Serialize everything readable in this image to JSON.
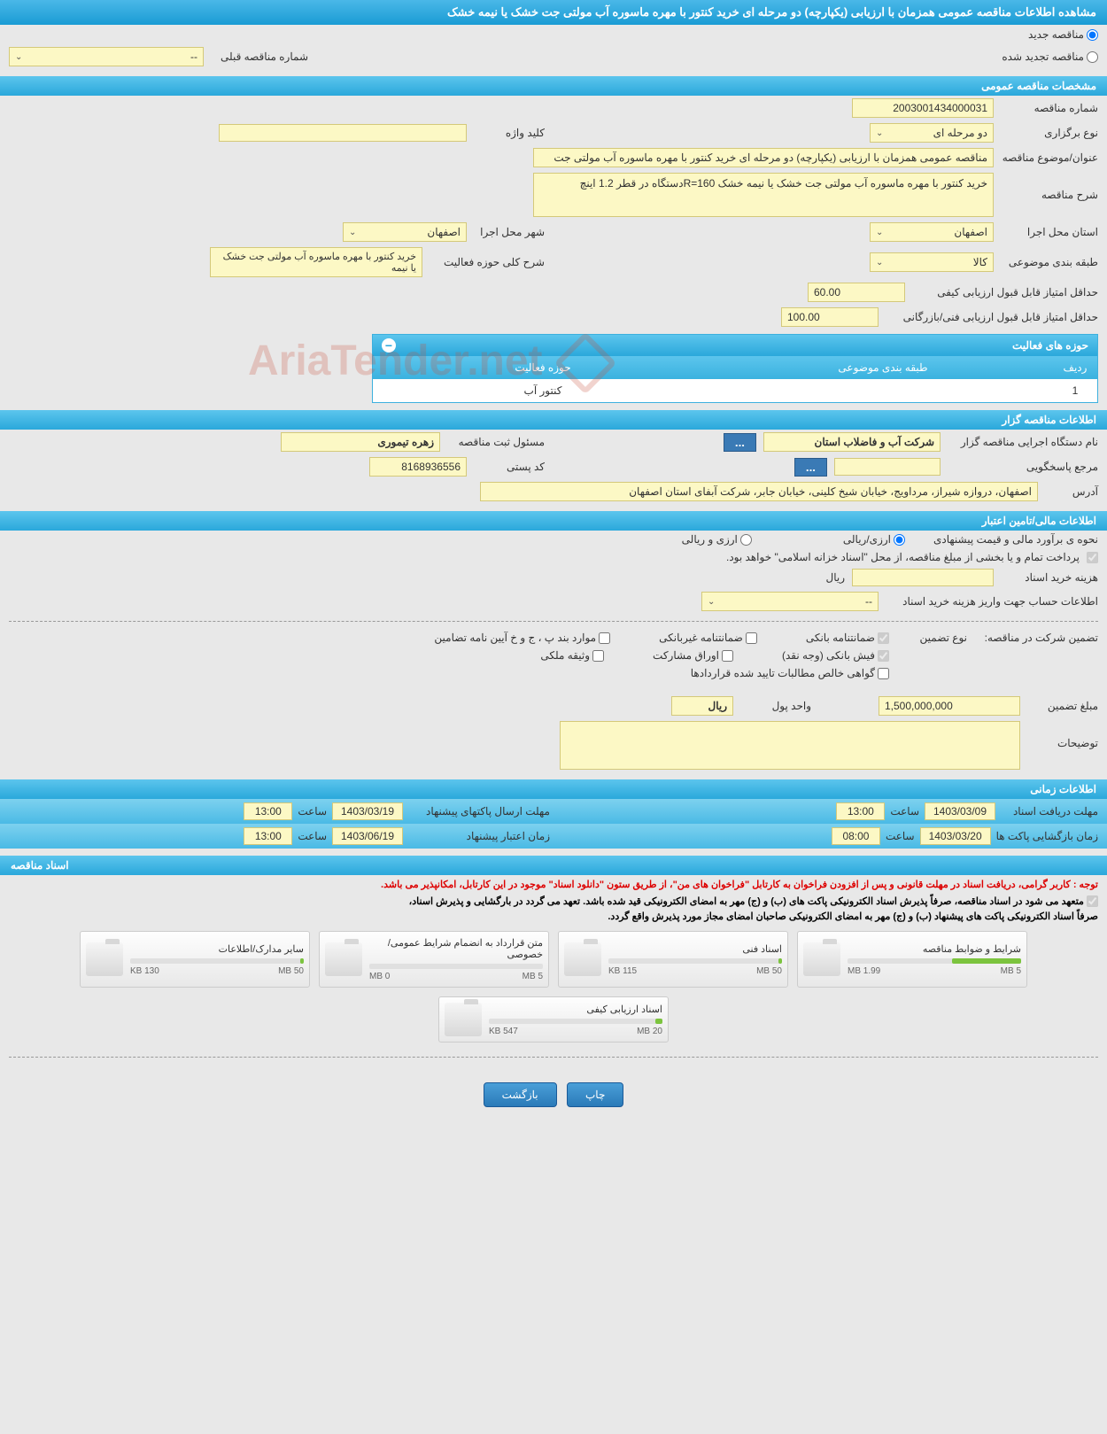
{
  "page_title": "مشاهده اطلاعات مناقصه عمومی همزمان با ارزیابی (یکپارچه) دو مرحله ای خرید کنتور با مهره ماسوره آب مولتی جت خشک یا نیمه خشک",
  "tender_status": {
    "new_label": "مناقصه جدید",
    "renewed_label": "مناقصه تجدید شده",
    "prev_number_label": "شماره مناقصه قبلی",
    "prev_number_value": "--"
  },
  "sections": {
    "general": "مشخصات مناقصه عمومی",
    "organizer": "اطلاعات مناقصه گزار",
    "financial": "اطلاعات مالی/تامین اعتبار",
    "timing": "اطلاعات زمانی",
    "documents": "اسناد مناقصه"
  },
  "general": {
    "tender_number_label": "شماره مناقصه",
    "tender_number": "2003001434000031",
    "keyword_label": "کلید واژه",
    "keyword": "",
    "type_label": "نوع برگزاری",
    "type": "دو مرحله ای",
    "subject_label": "عنوان/موضوع مناقصه",
    "subject": "مناقصه عمومی همزمان با ارزیابی (یکپارچه) دو مرحله ای خرید  کنتور با  مهره ماسوره  آب مولتی جت",
    "description_label": "شرح مناقصه",
    "description": "خرید  کنتور با  مهره ماسوره  آب مولتی جت خشک یا نیمه خشک R=160دستگاه  در قطر 1.2 اینچ",
    "province_label": "استان محل اجرا",
    "province": "اصفهان",
    "city_label": "شهر محل اجرا",
    "city": "اصفهان",
    "category_label": "طبقه بندی موضوعی",
    "category": "کالا",
    "activity_desc_label": "شرح کلی حوزه فعالیت",
    "activity_desc": "خرید  کنتور با  مهره ماسوره  آب مولتی جت خشک یا نیمه",
    "min_quality_label": "حداقل امتیاز قابل قبول ارزیابی کیفی",
    "min_quality": "60.00",
    "min_tech_label": "حداقل امتیاز قابل قبول ارزیابی فنی/بازرگانی",
    "min_tech": "100.00"
  },
  "activities": {
    "header": "حوزه های فعالیت",
    "col_row": "ردیف",
    "col_category": "طبقه بندی موضوعی",
    "col_activity": "حوزه فعالیت",
    "rows": [
      {
        "n": "1",
        "category": "",
        "activity": "کنتور آب"
      }
    ]
  },
  "organizer": {
    "org_name_label": "نام دستگاه اجرایی مناقصه گزار",
    "org_name": "شرکت آب و فاضلاب استان",
    "responsible_label": "مسئول ثبت مناقصه",
    "responsible": "زهره تیموری",
    "ref_label": "مرجع پاسخگویی",
    "ref": "",
    "postal_label": "کد پستی",
    "postal": "8168936556",
    "address_label": "آدرس",
    "address": "اصفهان، دروازه شیراز، مرداویج، خیابان شیخ کلینی، خیابان جابر، شرکت آبفای استان اصفهان",
    "ellipsis": "..."
  },
  "financial": {
    "estimate_label": "نحوه ی برآورد مالی و قیمت پیشنهادی",
    "riyal_label": "ارزی/ریالی",
    "currency_mix_label": "ارزی و ریالی",
    "payment_note_label": "پرداخت تمام و یا بخشی از مبلغ مناقصه، از محل \"اسناد خزانه اسلامی\" خواهد بود.",
    "doc_cost_label": "هزینه خرید اسناد",
    "doc_cost": "",
    "currency_unit": "ریال",
    "account_info_label": "اطلاعات حساب جهت واریز هزینه خرید اسناد",
    "account_info": "--",
    "guarantee_label": "تضمین شرکت در مناقصه:",
    "guarantee_type_label": "نوع تضمین",
    "g_bank": "ضمانتنامه بانکی",
    "g_nonbank": "ضمانتنامه غیربانکی",
    "g_bonds": "موارد بند پ ، ج و خ آیین نامه تضامین",
    "g_cash": "فیش بانکی (وجه نقد)",
    "g_securities": "اوراق مشارکت",
    "g_property": "وثیقه ملکی",
    "g_receivables": "گواهی خالص مطالبات تایید شده قراردادها",
    "amount_label": "مبلغ تضمین",
    "amount": "1,500,000,000",
    "unit_label": "واحد پول",
    "unit": "ریال",
    "notes_label": "توضیحات",
    "notes": ""
  },
  "timing": {
    "receive_label": "مهلت دریافت اسناد",
    "receive_date": "1403/03/09",
    "receive_time": "13:00",
    "send_label": "مهلت ارسال پاکتهای پیشنهاد",
    "send_date": "1403/03/19",
    "send_time": "13:00",
    "open_label": "زمان بازگشایی پاکت ها",
    "open_date": "1403/03/20",
    "open_time": "08:00",
    "validity_label": "زمان اعتبار پیشنهاد",
    "validity_date": "1403/06/19",
    "validity_time": "13:00",
    "time_label": "ساعت"
  },
  "docs_notice": {
    "red": "توجه : کاربر گرامی، دریافت اسناد در مهلت قانونی و پس از افزودن فراخوان به کارتابل \"فراخوان های من\"، از طریق ستون \"دانلود اسناد\" موجود در این کارتابل، امکانپذیر می باشد.",
    "black1": "متعهد می شود در اسناد مناقصه، صرفاً پذیرش اسناد الکترونیکی پاکت های (ب) و (ج) مهر به امضای الکترونیکی قید شده باشد. تعهد می گردد در بارگشایی و پذیرش اسناد،",
    "black2": "صرفاً اسناد الکترونیکی پاکت های پیشنهاد (ب) و (ج) مهر به امضای الکترونیکی صاحبان امضای مجاز مورد پذیرش واقع گردد."
  },
  "documents": [
    {
      "title": "شرایط و ضوابط مناقصه",
      "used": "1.99 MB",
      "total": "5 MB",
      "fill_pct": 40
    },
    {
      "title": "اسناد فنی",
      "used": "115 KB",
      "total": "50 MB",
      "fill_pct": 2
    },
    {
      "title": "متن قرارداد به انضمام شرایط عمومی/خصوصی",
      "used": "0 MB",
      "total": "5 MB",
      "fill_pct": 0
    },
    {
      "title": "سایر مدارک/اطلاعات",
      "used": "130 KB",
      "total": "50 MB",
      "fill_pct": 2
    },
    {
      "title": "اسناد ارزیابی کیفی",
      "used": "547 KB",
      "total": "20 MB",
      "fill_pct": 4
    }
  ],
  "buttons": {
    "print": "چاپ",
    "back": "بازگشت"
  },
  "watermark": "AriaTender.net"
}
